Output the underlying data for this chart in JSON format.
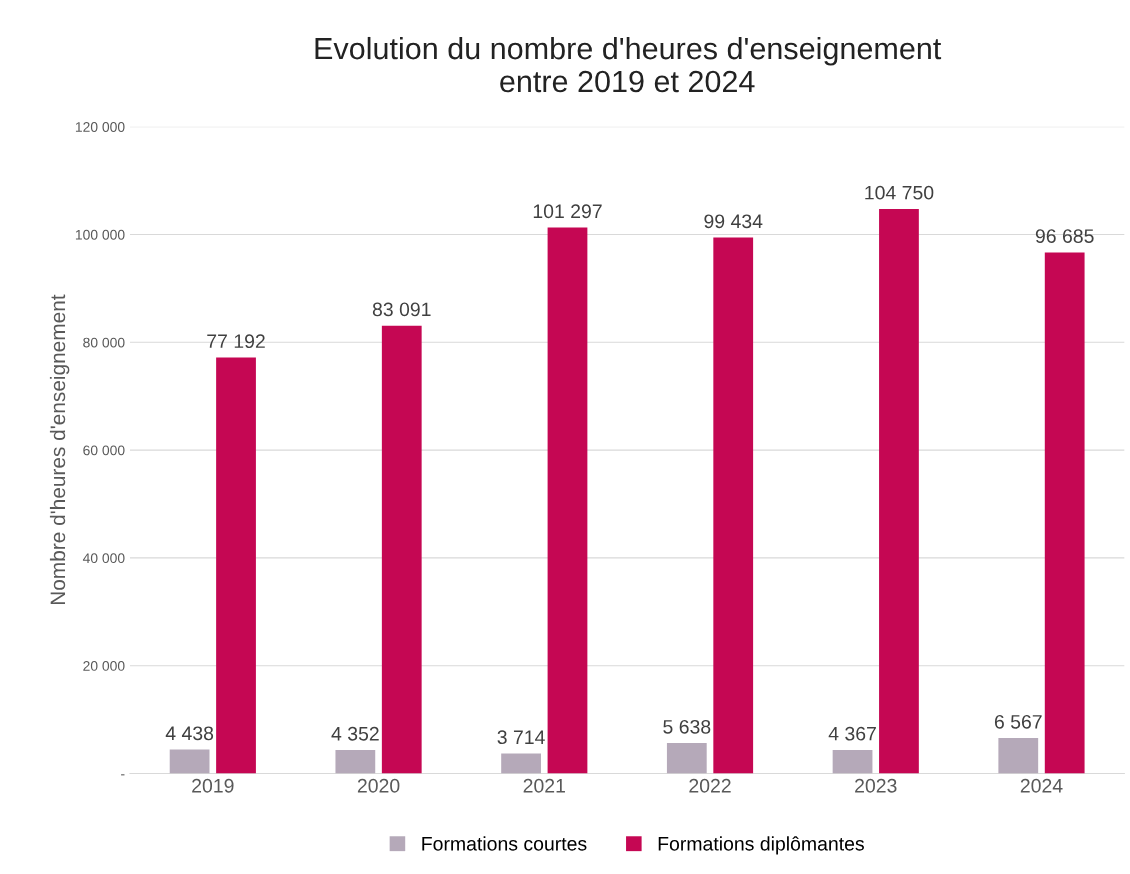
{
  "chart_data": {
    "type": "bar",
    "title": "Evolution du nombre d'heures d'enseignement\nentre 2019 et 2024",
    "ylabel": "Nombre d'heures d'enseignement",
    "categories": [
      "2019",
      "2020",
      "2021",
      "2022",
      "2023",
      "2024"
    ],
    "series": [
      {
        "name": "Formations courtes",
        "color": "#b5a9b9",
        "values": [
          4438,
          4352,
          3714,
          5638,
          4367,
          6567
        ],
        "value_labels": [
          "4 438",
          "4 352",
          "3 714",
          "5 638",
          "4 367",
          "6 567"
        ]
      },
      {
        "name": "Formations diplômantes",
        "color": "#c50753",
        "values": [
          77192,
          83091,
          101297,
          99434,
          104750,
          96685
        ],
        "value_labels": [
          "77 192",
          "83 091",
          "101 297",
          "99 434",
          "104 750",
          "96 685"
        ]
      }
    ],
    "ylim": [
      0,
      120000
    ],
    "yticks": [
      {
        "value": 0,
        "label": "-"
      },
      {
        "value": 20000,
        "label": "20 000"
      },
      {
        "value": 40000,
        "label": "40 000"
      },
      {
        "value": 60000,
        "label": "60 000"
      },
      {
        "value": 80000,
        "label": "80 000"
      },
      {
        "value": 100000,
        "label": "100 000"
      },
      {
        "value": 120000,
        "label": "120 000"
      }
    ],
    "grid": "y",
    "legend": "bottom"
  }
}
